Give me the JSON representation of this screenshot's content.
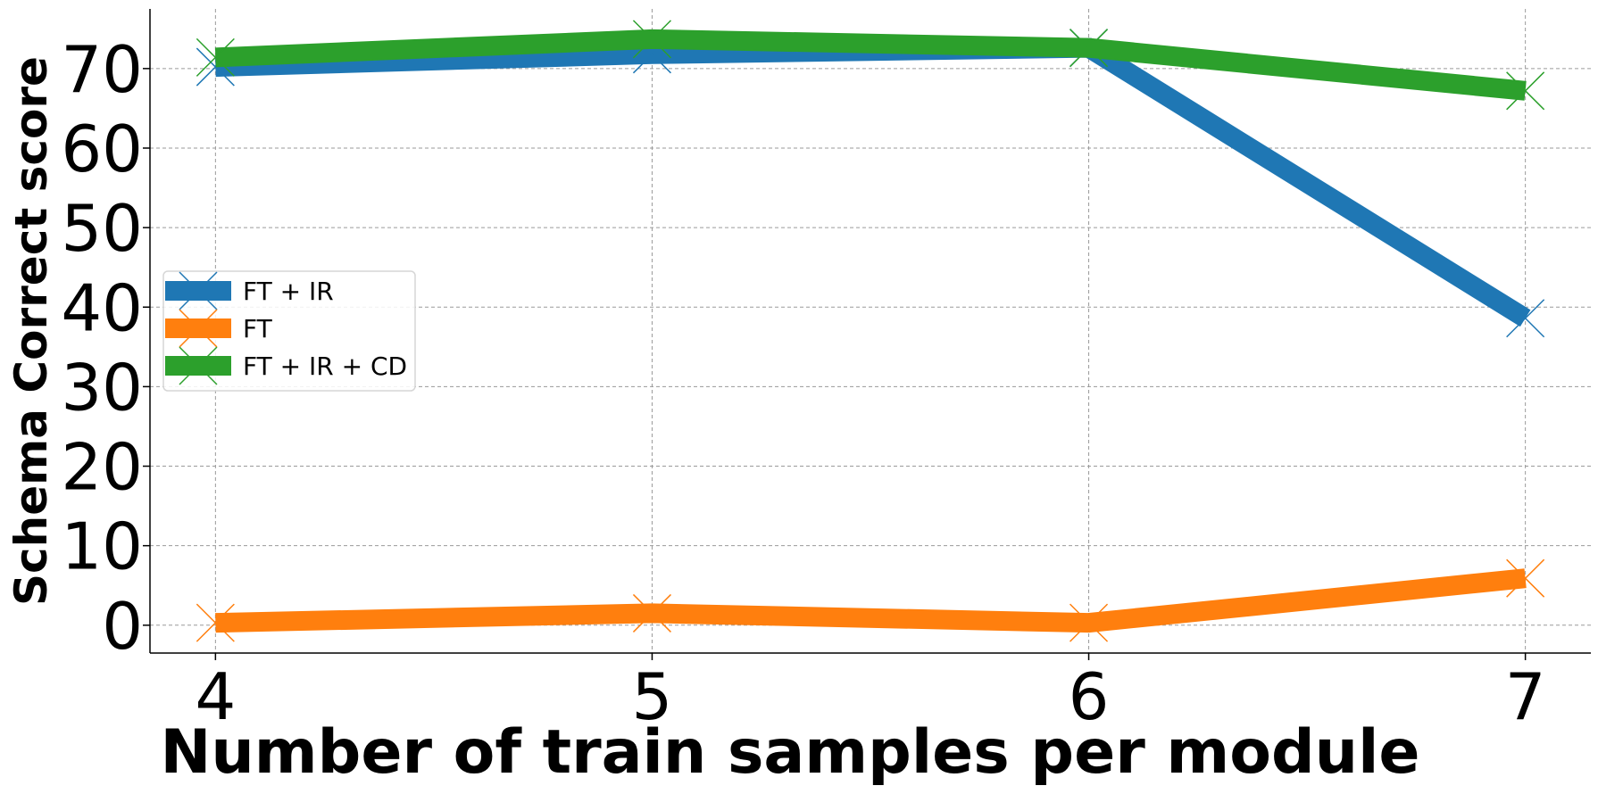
{
  "chart_data": {
    "type": "line",
    "x": [
      4,
      5,
      6,
      7
    ],
    "xlim": [
      3.85,
      7.15
    ],
    "ylim": [
      -3.5,
      77.5
    ],
    "xticks": [
      4,
      5,
      6,
      7
    ],
    "yticks": [
      0,
      10,
      20,
      30,
      40,
      50,
      60,
      70
    ],
    "xlabel": "Number of train samples per module",
    "ylabel": "Schema Correct score",
    "grid": true,
    "legend_position": "center-left",
    "marker": "x",
    "series": [
      {
        "name": "FT + IR",
        "color": "#1f77b4",
        "values": [
          70.2,
          71.8,
          72.6,
          38.6
        ]
      },
      {
        "name": "FT",
        "color": "#ff7f0e",
        "values": [
          0.3,
          1.5,
          0.3,
          5.9
        ]
      },
      {
        "name": "FT + IR + CD",
        "color": "#2ca02c",
        "values": [
          71.4,
          73.7,
          72.6,
          67.2
        ]
      }
    ]
  }
}
